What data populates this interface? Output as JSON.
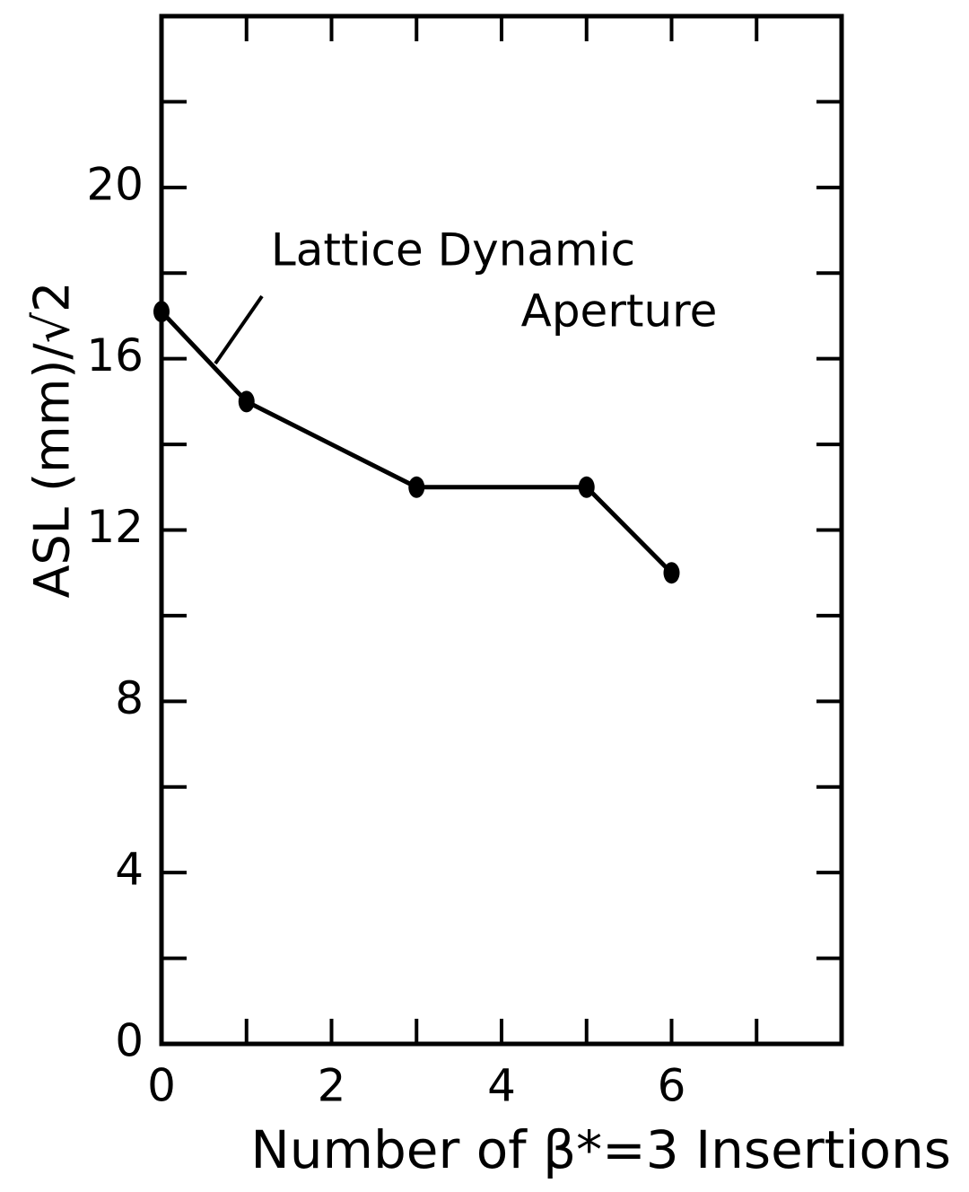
{
  "chart_data": {
    "type": "line",
    "annotation": [
      "Lattice Dynamic",
      "Aperture"
    ],
    "xlabel": "Number of β*=3 Insertions",
    "ylabel": "ASL (mm)/√2",
    "x": [
      0,
      1,
      3,
      5,
      6
    ],
    "series": [
      {
        "color": "#000000",
        "values": [
          17.1,
          15.0,
          13.0,
          13.0,
          11.0
        ]
      }
    ],
    "xlim": [
      0,
      8
    ],
    "xticks": [
      0,
      2,
      4,
      6
    ],
    "xminorticks": [
      1,
      3,
      5,
      7
    ],
    "ylim": [
      0,
      24
    ],
    "yticks": [
      0,
      4,
      8,
      12,
      16,
      20
    ],
    "yminorticks": [
      2,
      6,
      10,
      14,
      18,
      22
    ]
  }
}
